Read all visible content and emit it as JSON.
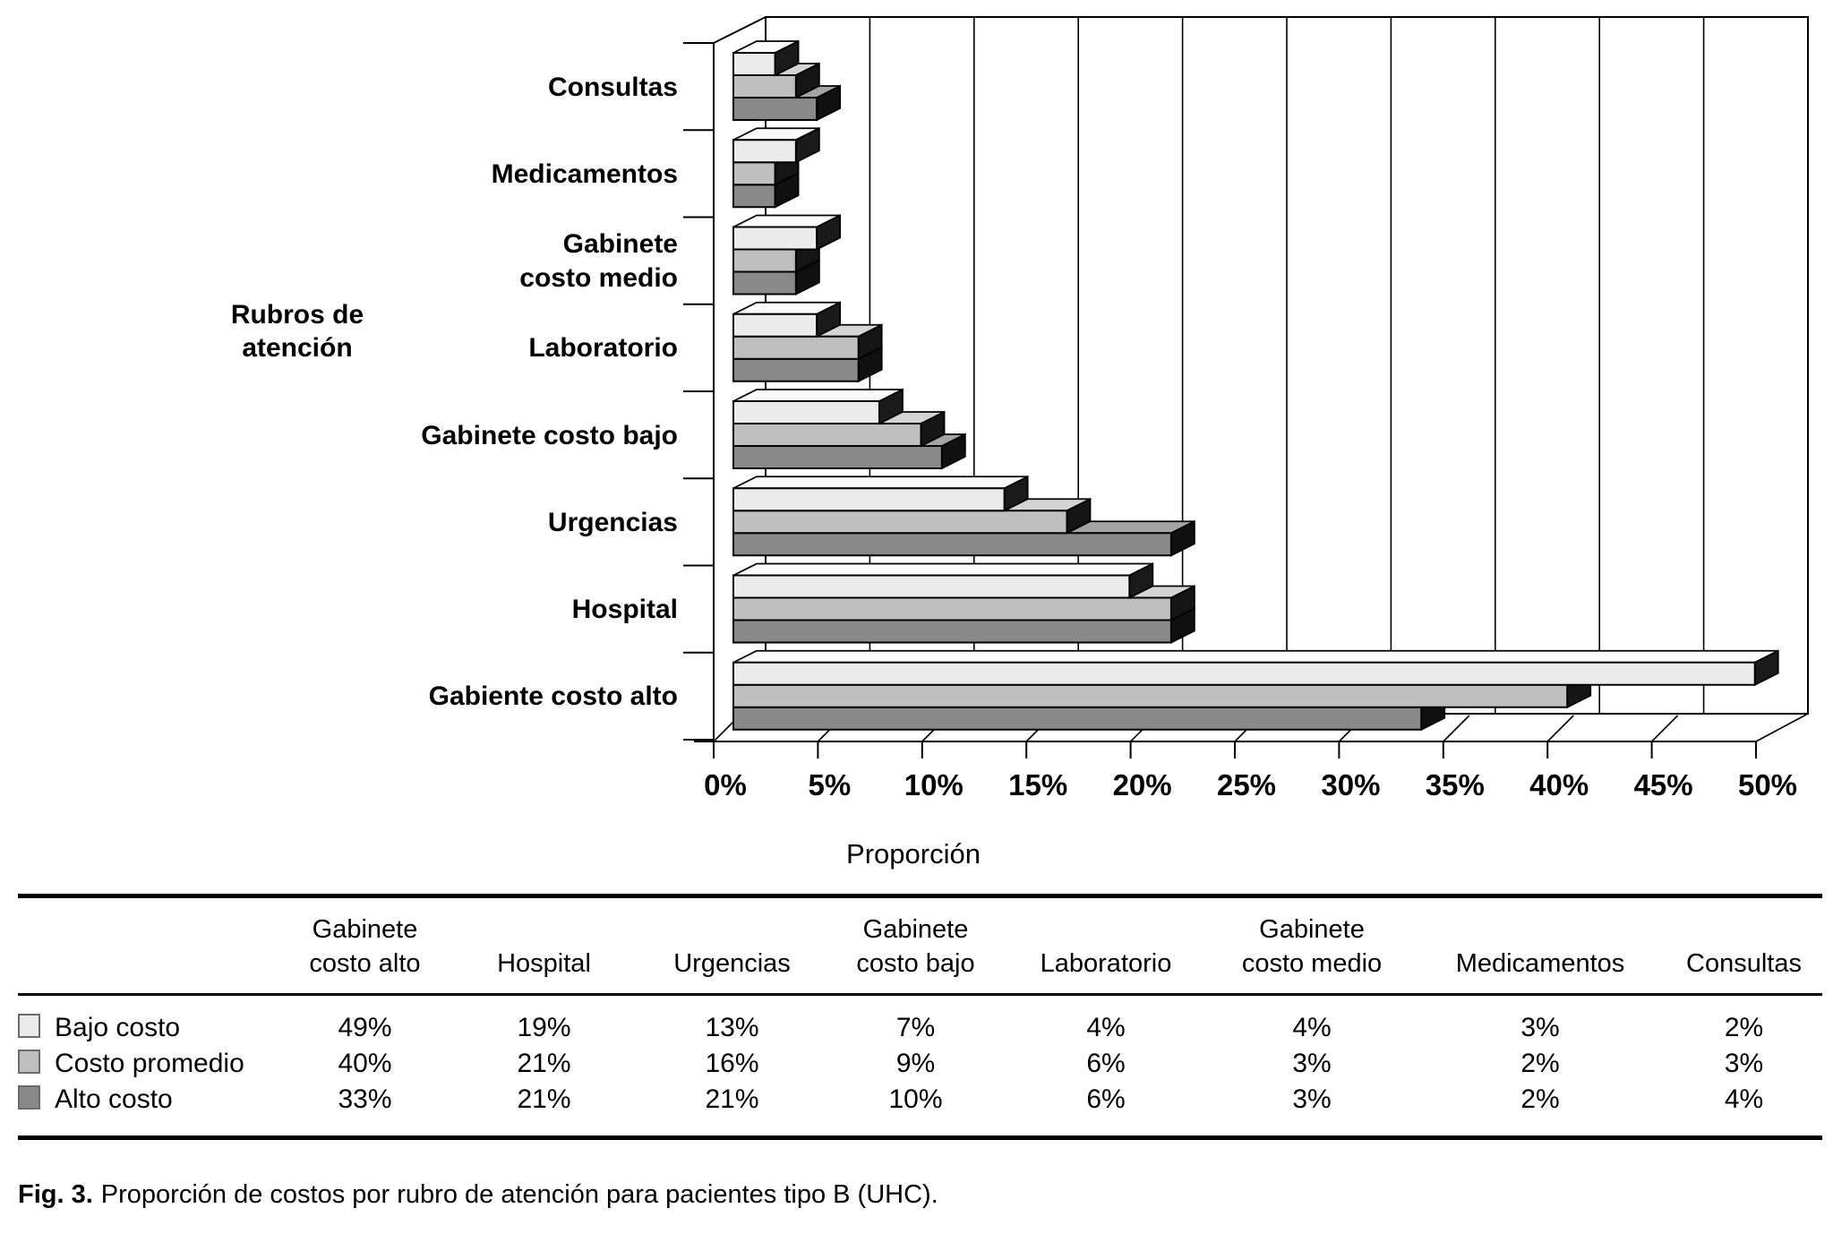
{
  "chart_data": {
    "type": "bar",
    "orientation": "horizontal-3d",
    "xlabel": "Proporción",
    "ylabel": "Rubros de atención",
    "xlim": [
      0,
      50
    ],
    "x_tick_labels": [
      "0%",
      "5%",
      "10%",
      "15%",
      "20%",
      "25%",
      "30%",
      "35%",
      "40%",
      "45%",
      "50%"
    ],
    "grid": true,
    "legend_position": "table-below",
    "categories_top_to_bottom": [
      [
        "Consultas"
      ],
      [
        "Medicamentos"
      ],
      [
        "Gabinete",
        "costo medio"
      ],
      [
        "Laboratorio"
      ],
      [
        "Gabinete costo bajo"
      ],
      [
        "Urgencias"
      ],
      [
        "Hospital"
      ],
      [
        "Gabiente costo alto"
      ]
    ],
    "series": [
      {
        "name": "Bajo costo",
        "color": "#ebebeb",
        "top_color": "#fafafa",
        "end_color": "#1a1a1a",
        "values": [
          2,
          3,
          4,
          4,
          7,
          13,
          19,
          49
        ]
      },
      {
        "name": "Costo promedio",
        "color": "#bfbfbf",
        "top_color": "#d4d4d4",
        "end_color": "#151515",
        "values": [
          3,
          2,
          3,
          6,
          9,
          16,
          21,
          40
        ]
      },
      {
        "name": "Alto costo",
        "color": "#898989",
        "top_color": "#a4a4a4",
        "end_color": "#101010",
        "values": [
          4,
          2,
          3,
          6,
          10,
          21,
          21,
          33
        ]
      }
    ]
  },
  "table": {
    "columns": [
      [
        "Gabinete",
        "costo alto"
      ],
      [
        "Hospital"
      ],
      [
        "Urgencias"
      ],
      [
        "Gabinete",
        "costo bajo"
      ],
      [
        "Laboratorio"
      ],
      [
        "Gabinete",
        "costo medio"
      ],
      [
        "Medicamentos"
      ],
      [
        "Consultas"
      ]
    ],
    "rows": [
      {
        "label": "Bajo costo",
        "swatch": "#ebebeb",
        "values": [
          "49%",
          "19%",
          "13%",
          "7%",
          "4%",
          "4%",
          "3%",
          "2%"
        ]
      },
      {
        "label": "Costo promedio",
        "swatch": "#bfbfbf",
        "values": [
          "40%",
          "21%",
          "16%",
          "9%",
          "6%",
          "3%",
          "2%",
          "3%"
        ]
      },
      {
        "label": "Alto costo",
        "swatch": "#898989",
        "values": [
          "33%",
          "21%",
          "21%",
          "10%",
          "6%",
          "3%",
          "2%",
          "4%"
        ]
      }
    ]
  },
  "caption": {
    "fig_label": "Fig. 3.",
    "text": "Proporción de costos por rubro de atención para pacientes tipo B (UHC)."
  }
}
